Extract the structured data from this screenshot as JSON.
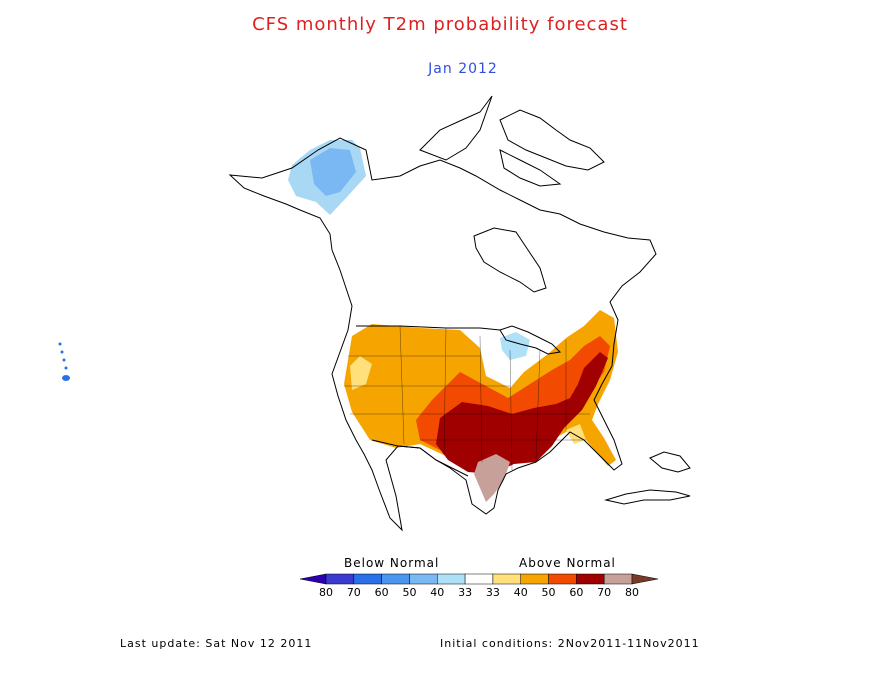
{
  "title": "CFS monthly T2m probability forecast",
  "subtitle": "Jan 2012",
  "colors": {
    "title": "#e02020",
    "subtitle": "#2f4fe0"
  },
  "legend": {
    "below_label": "Below Normal",
    "above_label": "Above Normal",
    "tick_labels": [
      "80",
      "70",
      "60",
      "50",
      "40",
      "33",
      "33",
      "40",
      "50",
      "60",
      "70",
      "80"
    ],
    "colors": [
      "#2a00b0",
      "#3a3ad0",
      "#2a70e8",
      "#4a96ee",
      "#7ab8f4",
      "#aee0f8",
      "#ffffff",
      "#ffe07a",
      "#f6a400",
      "#f24a00",
      "#a00000",
      "#c8a09a",
      "#7a3a2a"
    ]
  },
  "footer": {
    "last_update": "Last update: Sat Nov 12 2011",
    "initial_conditions": "Initial conditions: 2Nov2011-11Nov2011"
  }
}
